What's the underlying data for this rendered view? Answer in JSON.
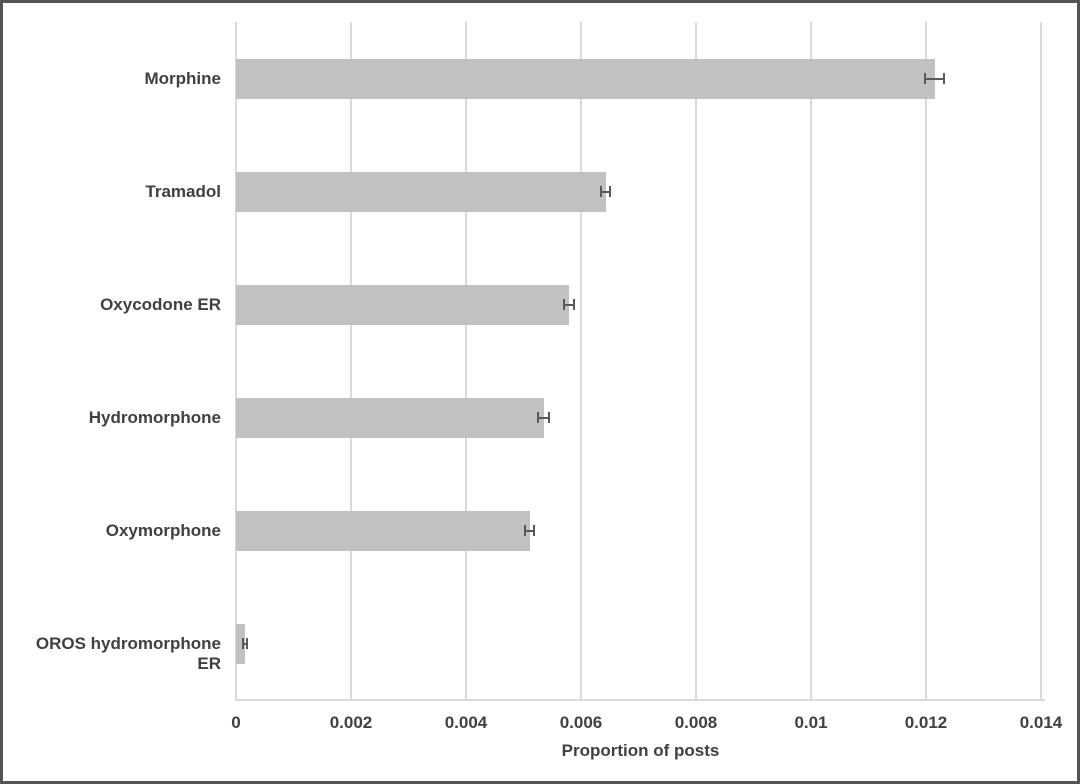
{
  "chart_data": {
    "type": "bar",
    "orientation": "horizontal",
    "title": "",
    "xlabel": "Proportion of posts",
    "ylabel": "",
    "categories": [
      "Morphine",
      "Tramadol",
      "Oxycodone ER",
      "Hydromorphone",
      "Oxymorphone",
      "OROS hydromorphone ER"
    ],
    "values": [
      0.01215,
      0.00643,
      0.00579,
      0.00535,
      0.00511,
      0.00016
    ],
    "error_bars": [
      0.00016,
      8e-05,
      8e-05,
      9e-05,
      8e-05,
      3e-05
    ],
    "xlim": [
      0,
      0.014
    ],
    "xticks": [
      {
        "value": 0,
        "label": "0"
      },
      {
        "value": 0.002,
        "label": "0.002"
      },
      {
        "value": 0.004,
        "label": "0.004"
      },
      {
        "value": 0.006,
        "label": "0.006"
      },
      {
        "value": 0.008,
        "label": "0.008"
      },
      {
        "value": 0.01,
        "label": "0.01"
      },
      {
        "value": 0.012,
        "label": "0.012"
      },
      {
        "value": 0.014,
        "label": "0.014"
      }
    ],
    "grid": "vertical-on",
    "legend": "none",
    "colors": {
      "bar_fill": "#c1c1c1",
      "gridline": "#d9d9d9",
      "error_bar": "#595959",
      "text": "#404040",
      "frame_border": "#555555",
      "background": "#ffffff"
    }
  }
}
